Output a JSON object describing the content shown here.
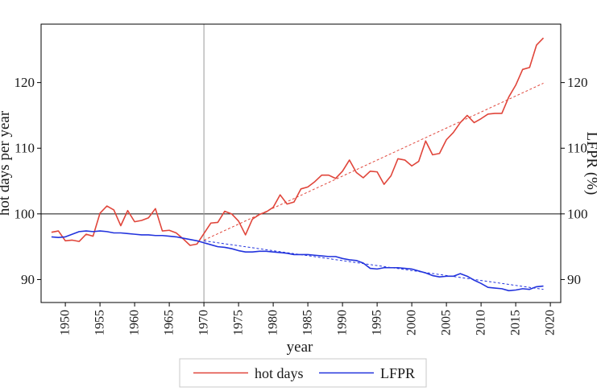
{
  "chart_data": {
    "type": "line",
    "xlabel": "year",
    "ylabel_left": "hot days per year",
    "ylabel_right": "LFPR (%)",
    "x_ticks": [
      1950,
      1955,
      1960,
      1965,
      1970,
      1975,
      1980,
      1985,
      1990,
      1995,
      2000,
      2005,
      2010,
      2015,
      2020
    ],
    "y_ticks": [
      90,
      100,
      110,
      120
    ],
    "xlim": [
      1946.5,
      2021.5
    ],
    "ylim": [
      86.5,
      128.9
    ],
    "reference_line_y": 100,
    "vertical_line_x": 1970,
    "legend_position": "bottom",
    "series": [
      {
        "name": "hot days",
        "color": "#e0453a",
        "x": [
          1948,
          1949,
          1950,
          1951,
          1952,
          1953,
          1954,
          1955,
          1956,
          1957,
          1958,
          1959,
          1960,
          1961,
          1962,
          1963,
          1964,
          1965,
          1966,
          1967,
          1968,
          1969,
          1970,
          1971,
          1972,
          1973,
          1974,
          1975,
          1976,
          1977,
          1978,
          1979,
          1980,
          1981,
          1982,
          1983,
          1984,
          1985,
          1986,
          1987,
          1988,
          1989,
          1990,
          1991,
          1992,
          1993,
          1994,
          1995,
          1996,
          1997,
          1998,
          1999,
          2000,
          2001,
          2002,
          2003,
          2004,
          2005,
          2006,
          2007,
          2008,
          2009,
          2010,
          2011,
          2012,
          2013,
          2014,
          2015,
          2016,
          2017,
          2018,
          2019
        ],
        "values": [
          97.2,
          97.4,
          95.9,
          96.0,
          95.8,
          96.9,
          96.6,
          100.1,
          101.2,
          100.6,
          98.2,
          100.5,
          98.8,
          99.0,
          99.4,
          100.8,
          97.4,
          97.5,
          97.1,
          96.2,
          95.2,
          95.4,
          97.0,
          98.6,
          98.7,
          100.4,
          100.0,
          98.9,
          96.8,
          99.2,
          99.9,
          100.3,
          101.0,
          102.9,
          101.5,
          101.8,
          103.8,
          104.1,
          104.9,
          105.9,
          105.9,
          105.4,
          106.5,
          108.2,
          106.3,
          105.5,
          106.5,
          106.4,
          104.5,
          105.8,
          108.4,
          108.2,
          107.3,
          108.0,
          111.1,
          109.0,
          109.2,
          111.3,
          112.4,
          113.9,
          115.0,
          113.9,
          114.5,
          115.2,
          115.3,
          115.3,
          117.8,
          119.6,
          122.0,
          122.3,
          125.7,
          126.8
        ]
      },
      {
        "name": "LFPR",
        "color": "#2233dd",
        "x": [
          1948,
          1949,
          1950,
          1951,
          1952,
          1953,
          1954,
          1955,
          1956,
          1957,
          1958,
          1959,
          1960,
          1961,
          1962,
          1963,
          1964,
          1965,
          1966,
          1967,
          1968,
          1969,
          1970,
          1971,
          1972,
          1973,
          1974,
          1975,
          1976,
          1977,
          1978,
          1979,
          1980,
          1981,
          1982,
          1983,
          1984,
          1985,
          1986,
          1987,
          1988,
          1989,
          1990,
          1991,
          1992,
          1993,
          1994,
          1995,
          1996,
          1997,
          1998,
          1999,
          2000,
          2001,
          2002,
          2003,
          2004,
          2005,
          2006,
          2007,
          2008,
          2009,
          2010,
          2011,
          2012,
          2013,
          2014,
          2015,
          2016,
          2017,
          2018,
          2019
        ],
        "values": [
          96.5,
          96.4,
          96.5,
          96.9,
          97.3,
          97.4,
          97.3,
          97.4,
          97.3,
          97.1,
          97.1,
          97.0,
          96.9,
          96.8,
          96.8,
          96.7,
          96.7,
          96.6,
          96.5,
          96.3,
          96.1,
          95.9,
          95.6,
          95.3,
          95.0,
          94.9,
          94.7,
          94.4,
          94.2,
          94.2,
          94.3,
          94.3,
          94.2,
          94.1,
          94.0,
          93.8,
          93.8,
          93.8,
          93.7,
          93.6,
          93.5,
          93.5,
          93.2,
          93.0,
          92.9,
          92.5,
          91.7,
          91.6,
          91.8,
          91.8,
          91.8,
          91.7,
          91.6,
          91.3,
          91.0,
          90.6,
          90.4,
          90.5,
          90.5,
          90.9,
          90.5,
          89.9,
          89.4,
          88.8,
          88.7,
          88.6,
          88.3,
          88.4,
          88.6,
          88.5,
          88.9,
          89.0
        ]
      }
    ],
    "trend_lines": [
      {
        "series": "hot days",
        "x": [
          1970,
          2019
        ],
        "values": [
          96.0,
          119.9
        ]
      },
      {
        "series": "LFPR",
        "x": [
          1970,
          2019
        ],
        "values": [
          95.9,
          88.5
        ]
      }
    ]
  }
}
